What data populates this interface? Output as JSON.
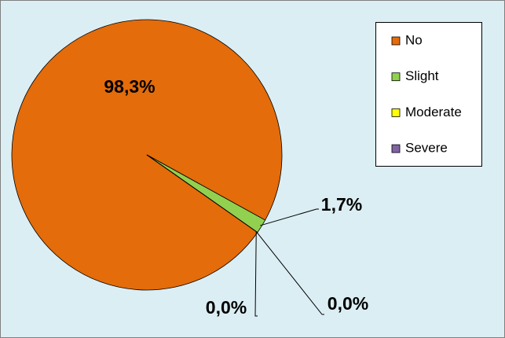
{
  "chart_data": {
    "type": "pie",
    "categories": [
      "No",
      "Slight",
      "Moderate",
      "Severe"
    ],
    "values": [
      98.3,
      1.7,
      0.0,
      0.0
    ],
    "value_labels": [
      "98,3%",
      "1,7%",
      "0,0%",
      "0,0%"
    ],
    "colors": [
      "#e46c0a",
      "#92d050",
      "#ffff00",
      "#8064a2"
    ],
    "legend": "right"
  }
}
